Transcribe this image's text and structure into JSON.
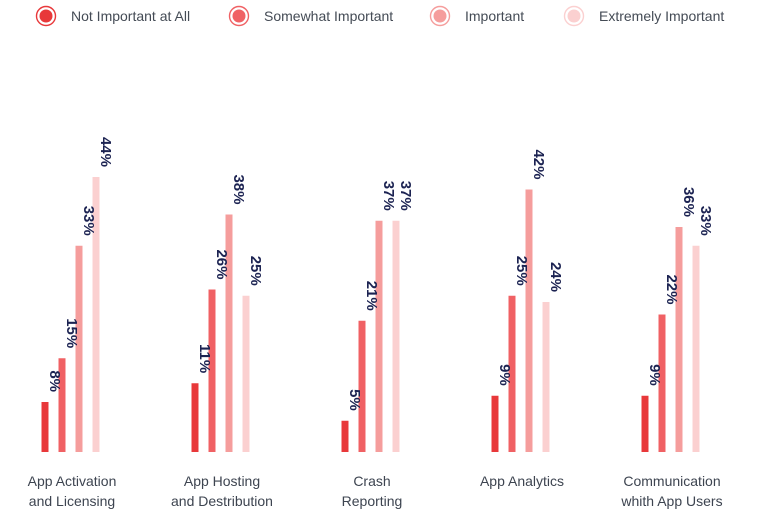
{
  "chart_data": {
    "type": "bar",
    "categories": [
      [
        "App Activation",
        "and Licensing"
      ],
      [
        "App Hosting",
        "and Destribution"
      ],
      [
        "Crash",
        "Reporting"
      ],
      [
        "App Analytics"
      ],
      [
        "Communication",
        "whith App Users"
      ]
    ],
    "series": [
      {
        "name": "Not Important at All",
        "color": "#e8383a",
        "values": [
          8,
          11,
          5,
          9,
          9
        ]
      },
      {
        "name": "Somewhat Important",
        "color": "#f06164",
        "values": [
          15,
          26,
          21,
          25,
          22
        ]
      },
      {
        "name": "Important",
        "color": "#f59d9c",
        "values": [
          33,
          38,
          37,
          42,
          36
        ]
      },
      {
        "name": "Extremely Important",
        "color": "#fbd0d0",
        "values": [
          44,
          25,
          37,
          24,
          33
        ]
      }
    ],
    "value_suffix": "%",
    "ylim": [
      0,
      44
    ],
    "grid": false,
    "legend_position": "top",
    "label_color": "#1c2352"
  }
}
